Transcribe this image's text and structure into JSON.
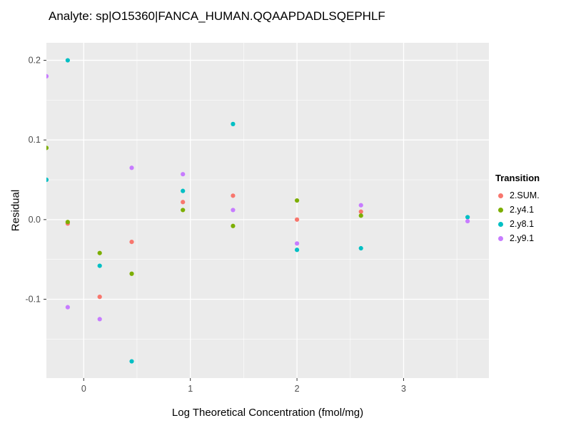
{
  "chart_data": {
    "type": "scatter",
    "title": "Analyte: sp|O15360|FANCA_HUMAN.QQAAPDADLSQEPHLF",
    "xlabel": "Log Theoretical Concentration (fmol/mg)",
    "ylabel": "Residual",
    "xlim": [
      -0.35,
      3.8
    ],
    "ylim": [
      -0.199,
      0.222
    ],
    "x_ticks": [
      0,
      1,
      2,
      3
    ],
    "x_tick_labels": [
      "0",
      "1",
      "2",
      "3"
    ],
    "y_ticks": [
      -0.1,
      0.0,
      0.1,
      0.2
    ],
    "y_tick_labels": [
      "-0.1",
      "0.0",
      "0.1",
      "0.2"
    ],
    "x_minor_ticks": [
      0.5,
      1.5,
      2.5,
      3.5
    ],
    "y_minor_ticks": [
      -0.15,
      -0.05,
      0.05,
      0.15
    ],
    "grid": true,
    "panel_background": "#EBEBEB",
    "grid_color": "#FFFFFF",
    "tick_mark_color": "#333333",
    "tick_text_color": "#4D4D4D",
    "legend_title": "Transition",
    "legend_position": "right",
    "series": [
      {
        "name": "2.SUM.",
        "color": "#F8766D",
        "points": [
          [
            -0.15,
            -0.005
          ],
          [
            0.15,
            -0.097
          ],
          [
            0.45,
            -0.028
          ],
          [
            0.93,
            0.022
          ],
          [
            1.4,
            0.03
          ],
          [
            2.0,
            0.0
          ],
          [
            2.6,
            0.01
          ]
        ]
      },
      {
        "name": "2.y4.1",
        "color": "#7CAE00",
        "points": [
          [
            -0.35,
            0.09
          ],
          [
            -0.15,
            -0.003
          ],
          [
            0.15,
            -0.042
          ],
          [
            0.45,
            -0.068
          ],
          [
            0.93,
            0.012
          ],
          [
            1.4,
            -0.008
          ],
          [
            2.0,
            0.024
          ],
          [
            2.6,
            0.005
          ]
        ]
      },
      {
        "name": "2.y8.1",
        "color": "#00BFC4",
        "points": [
          [
            -0.35,
            0.05
          ],
          [
            -0.15,
            0.2
          ],
          [
            0.15,
            -0.058
          ],
          [
            0.45,
            -0.178
          ],
          [
            0.93,
            0.036
          ],
          [
            1.4,
            0.12
          ],
          [
            2.0,
            -0.038
          ],
          [
            2.6,
            -0.036
          ],
          [
            3.6,
            0.003
          ]
        ]
      },
      {
        "name": "2.y9.1",
        "color": "#C77CFF",
        "points": [
          [
            -0.35,
            0.18
          ],
          [
            -0.15,
            -0.11
          ],
          [
            0.15,
            -0.125
          ],
          [
            0.45,
            0.065
          ],
          [
            0.93,
            0.057
          ],
          [
            1.4,
            0.012
          ],
          [
            2.0,
            -0.03
          ],
          [
            2.6,
            0.018
          ],
          [
            3.6,
            -0.002
          ]
        ]
      }
    ]
  }
}
